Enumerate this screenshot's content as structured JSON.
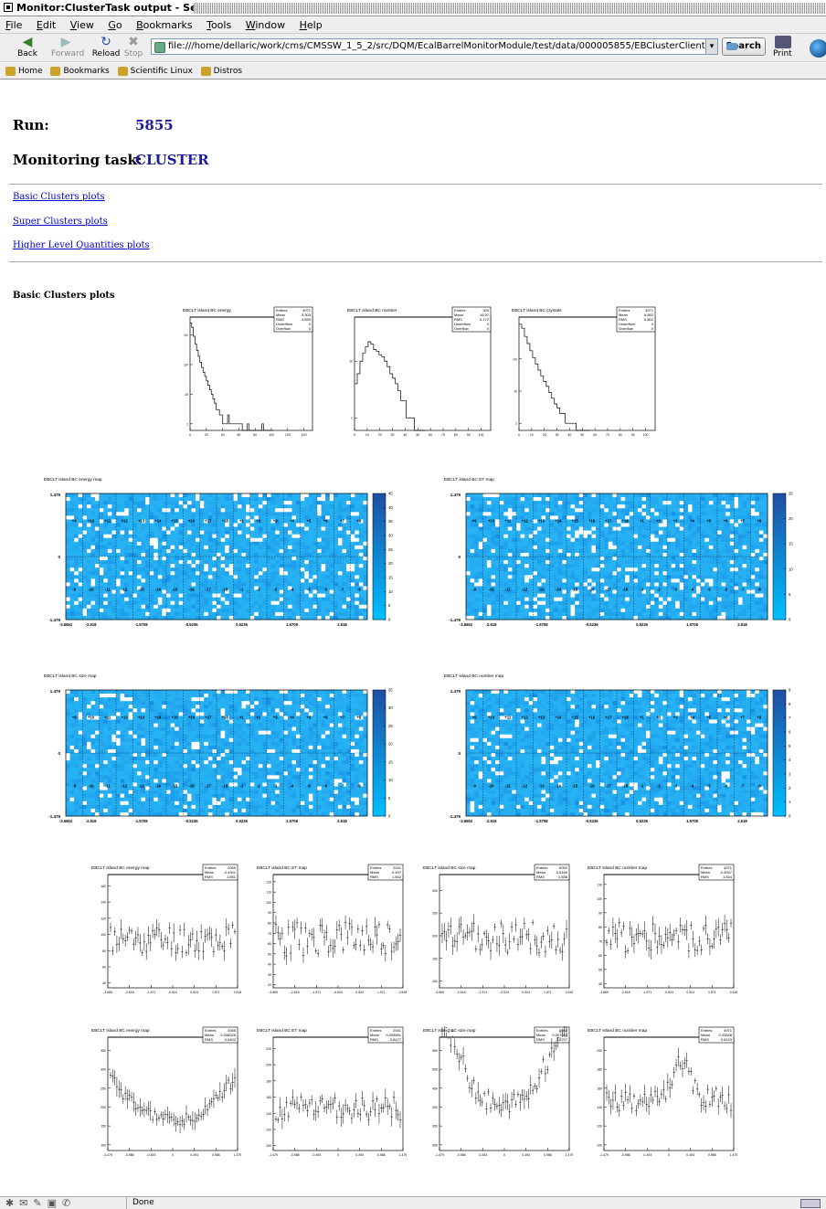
{
  "window": {
    "title": "Monitor:ClusterTask output - SeaMonkey"
  },
  "menu": [
    "File",
    "Edit",
    "View",
    "Go",
    "Bookmarks",
    "Tools",
    "Window",
    "Help"
  ],
  "nav": {
    "back": "Back",
    "forward": "Forward",
    "reload": "Reload",
    "stop": "Stop",
    "search": "Search",
    "print": "Print"
  },
  "address": {
    "url": "file:///home/dellaric/work/cms/CMSSW_1_5_2/src/DQM/EcalBarrelMonitorModule/test/data/000005855/EBClusterClient.html"
  },
  "bookmarks": [
    "Home",
    "Bookmarks",
    "Scientific Linux",
    "Distros"
  ],
  "page": {
    "run_label": "Run:",
    "run_value": "5855",
    "task_label": "Monitoring task:",
    "task_value": "CLUSTER",
    "links": [
      "Basic Clusters plots",
      "Super Clusters plots",
      "Higher Level Quantities plots"
    ],
    "section_title": "Basic Clusters plots"
  },
  "status": {
    "text": "Done"
  },
  "chart_data": [
    {
      "type": "line",
      "title": "EBCLT island BC energy",
      "stats": {
        "Entries": "4971",
        "Mean": "3.303",
        "RMS": "4.859",
        "Underflow": "0",
        "Overflow": "0"
      },
      "xticks": [
        "0",
        "20",
        "40",
        "60",
        "80",
        "100",
        "120",
        "140"
      ],
      "xlim": [
        0,
        150
      ],
      "logy": true,
      "ylim": [
        0.6,
        4000
      ],
      "yticks": [
        "1",
        "10",
        "10²",
        "10³"
      ],
      "x": [
        0,
        2,
        4,
        6,
        8,
        10,
        12,
        14,
        16,
        18,
        20,
        22,
        24,
        26,
        28,
        30,
        32,
        34,
        36,
        38,
        40,
        42,
        44,
        46,
        48,
        50,
        52,
        54,
        56,
        58,
        60,
        62,
        64,
        66,
        68,
        70,
        72,
        74,
        76,
        78,
        80,
        82,
        84,
        86,
        88,
        90,
        92,
        94,
        96,
        98,
        100
      ],
      "values": [
        2500,
        1800,
        900,
        500,
        300,
        190,
        120,
        80,
        55,
        40,
        28,
        20,
        14,
        10,
        7,
        5,
        3,
        3,
        2,
        2,
        1,
        1,
        1,
        2,
        1,
        1,
        1,
        1,
        1,
        1,
        1,
        1,
        0,
        0,
        0,
        1,
        0,
        0,
        0,
        0,
        0,
        0,
        0,
        0,
        1,
        0,
        0,
        0,
        0,
        0,
        0
      ]
    },
    {
      "type": "line",
      "title": "EBCLT island BC number",
      "stats": {
        "Entries": "300",
        "Mean": "16.57",
        "RMS": "9.172",
        "Underflow": "0",
        "Overflow": "0"
      },
      "xticks": [
        "0",
        "10",
        "20",
        "30",
        "40",
        "50",
        "60",
        "70",
        "80",
        "90",
        "100"
      ],
      "xlim": [
        0,
        100
      ],
      "logy": true,
      "ylim": [
        0.6,
        60
      ],
      "yticks": [
        "1",
        "10"
      ],
      "x": [
        0,
        2,
        4,
        6,
        8,
        10,
        12,
        14,
        16,
        18,
        20,
        22,
        24,
        26,
        28,
        30,
        32,
        34,
        36,
        38,
        40,
        42,
        44,
        46,
        48,
        50
      ],
      "values": [
        4,
        6,
        10,
        14,
        18,
        22,
        20,
        16,
        15,
        13,
        12,
        10,
        8,
        6,
        5,
        4,
        3,
        2,
        2,
        1,
        1,
        1,
        0,
        0,
        0,
        0
      ]
    },
    {
      "type": "line",
      "title": "EBCLT island BC crystals",
      "stats": {
        "Entries": "4971",
        "Mean": "6.852",
        "RMS": "5.802",
        "Underflow": "0",
        "Overflow": "0"
      },
      "xticks": [
        "0",
        "10",
        "20",
        "30",
        "40",
        "50",
        "60",
        "70",
        "80",
        "90",
        "100"
      ],
      "xlim": [
        0,
        100
      ],
      "logy": true,
      "ylim": [
        0.6,
        2000
      ],
      "yticks": [
        "1",
        "10",
        "10²"
      ],
      "x": [
        0,
        2,
        4,
        6,
        8,
        10,
        12,
        14,
        16,
        18,
        20,
        22,
        24,
        26,
        28,
        30,
        32,
        34,
        36,
        38,
        40,
        42,
        44,
        46,
        48,
        50
      ],
      "values": [
        1200,
        900,
        500,
        300,
        180,
        110,
        70,
        45,
        30,
        20,
        14,
        9,
        6,
        4,
        3,
        2,
        2,
        1,
        1,
        1,
        1,
        0,
        0,
        0,
        0,
        0
      ]
    },
    {
      "type": "heatmap",
      "title": "EBCLT island BC energy map",
      "ylabels": [
        "1.479",
        "0",
        "-1.479"
      ],
      "xlabels": [
        "-3.6652",
        "-2.618",
        "-1.5708",
        "-0.5236",
        "0.5236",
        "1.5708",
        "2.618"
      ],
      "zticks": [
        "0",
        "5",
        "10",
        "15",
        "20",
        "25",
        "30",
        "35",
        "40",
        "45"
      ],
      "zmax": 45,
      "sm_top": [
        "+9",
        "+10",
        "+11",
        "+12",
        "+13",
        "+14",
        "+15",
        "+16",
        "+17",
        "+18",
        "+1",
        "+2",
        "+3",
        "+4",
        "+5",
        "+6",
        "+7",
        "+8"
      ],
      "sm_bot": [
        "-9",
        "-10",
        "-11",
        "-12",
        "-13",
        "-14",
        "-15",
        "-16",
        "-17",
        "-18",
        "-1",
        "-2",
        "-3",
        "-4",
        "-5",
        "-6",
        "-7",
        "-8"
      ]
    },
    {
      "type": "heatmap",
      "title": "EBCLT island BC ET map",
      "ylabels": [
        "1.479",
        "0",
        "-1.479"
      ],
      "xlabels": [
        "-3.6652",
        "-2.618",
        "-1.5708",
        "-0.5236",
        "0.5236",
        "1.5708",
        "2.618"
      ],
      "zticks": [
        "0",
        "5",
        "10",
        "15",
        "20",
        "25"
      ],
      "zmax": 25,
      "sm_top": [
        "+9",
        "+10",
        "+11",
        "+12",
        "+13",
        "+14",
        "+15",
        "+16",
        "+17",
        "+18",
        "+1",
        "+2",
        "+3",
        "+4",
        "+5",
        "+6",
        "+7",
        "+8"
      ],
      "sm_bot": [
        "-9",
        "-10",
        "-11",
        "-12",
        "-13",
        "-14",
        "-15",
        "-16",
        "-17",
        "-18",
        "-1",
        "-2",
        "-3",
        "-4",
        "-5",
        "-6",
        "-7",
        "-8"
      ]
    },
    {
      "type": "heatmap",
      "title": "EBCLT island BC size map",
      "ylabels": [
        "1.479",
        "0",
        "-1.479"
      ],
      "xlabels": [
        "-3.6652",
        "-2.618",
        "-1.5708",
        "-0.5236",
        "0.5236",
        "1.5708",
        "2.618"
      ],
      "zticks": [
        "0",
        "5",
        "10",
        "15",
        "20",
        "25",
        "30",
        "35"
      ],
      "zmax": 35,
      "sm_top": [
        "+9",
        "+10",
        "+11",
        "+12",
        "+13",
        "+14",
        "+15",
        "+16",
        "+17",
        "+18",
        "+1",
        "+2",
        "+3",
        "+4",
        "+5",
        "+6",
        "+7",
        "+8"
      ],
      "sm_bot": [
        "-9",
        "-10",
        "-11",
        "-12",
        "-13",
        "-14",
        "-15",
        "-16",
        "-17",
        "-18",
        "-1",
        "-2",
        "-3",
        "-4",
        "-5",
        "-6",
        "-7",
        "-8"
      ]
    },
    {
      "type": "heatmap",
      "title": "EBCLT island BC number map",
      "ylabels": [
        "1.479",
        "0",
        "-1.479"
      ],
      "xlabels": [
        "-3.6652",
        "-2.618",
        "-1.5708",
        "-0.5236",
        "0.5236",
        "1.5708",
        "2.618"
      ],
      "zticks": [
        "0",
        "1",
        "2",
        "3",
        "4",
        "5",
        "6",
        "7",
        "8",
        "9"
      ],
      "zmax": 9,
      "sm_top": [
        "+9",
        "+10",
        "+11",
        "+12",
        "+13",
        "+14",
        "+15",
        "+16",
        "+17",
        "+18",
        "+1",
        "+2",
        "+3",
        "+4",
        "+5",
        "+6",
        "+7",
        "+8"
      ],
      "sm_bot": [
        "-9",
        "-10",
        "-11",
        "-12",
        "-13",
        "-14",
        "-15",
        "-16",
        "-17",
        "-18",
        "-1",
        "-2",
        "-3",
        "-4",
        "-5",
        "-6",
        "-7",
        "-8"
      ]
    },
    {
      "type": "scatter",
      "title": "EBCLT island BC energy map",
      "stats": {
        "Entries": "2065",
        "Mean": "-0.4941",
        "RMS": "1.851"
      },
      "xticks": [
        "-3.665",
        "-2.618",
        "-1.571",
        "-0.524",
        "0.524",
        "1.571",
        "2.618"
      ],
      "yticks": [
        "40",
        "60",
        "80",
        "100",
        "120",
        "140",
        "160"
      ],
      "ylim": [
        30,
        170
      ],
      "xlim": [
        -3.665,
        2.618
      ],
      "base": 90,
      "amp": 18,
      "seed": 11
    },
    {
      "type": "scatter",
      "title": "EBCLT island BC ET map",
      "stats": {
        "Entries": "2041",
        "Mean": "-0.497",
        "RMS": "1.842"
      },
      "xticks": [
        "-3.665",
        "-2.618",
        "-1.571",
        "-0.524",
        "0.524",
        "1.571",
        "2.618"
      ],
      "yticks": [
        "20",
        "30",
        "40",
        "50",
        "60",
        "70",
        "80",
        "90",
        "100",
        "110",
        "120"
      ],
      "ylim": [
        15,
        125
      ],
      "xlim": [
        -3.665,
        2.618
      ],
      "base": 62,
      "amp": 17,
      "seed": 23
    },
    {
      "type": "scatter",
      "title": "EBCLT island BC size map",
      "stats": {
        "Entries": "6052",
        "Mean": "-0.5165",
        "RMS": "1.836"
      },
      "xticks": [
        "-3.665",
        "-2.618",
        "-1.571",
        "-0.524",
        "0.524",
        "1.571",
        "2.618"
      ],
      "yticks": [
        "100",
        "150",
        "200",
        "250",
        "300"
      ],
      "ylim": [
        95,
        310
      ],
      "xlim": [
        -3.665,
        2.618
      ],
      "base": 190,
      "amp": 30,
      "seed": 37
    },
    {
      "type": "scatter",
      "title": "EBCLT island BC number map",
      "stats": {
        "Entries": "4971",
        "Mean": "-0.4937",
        "RMS": "1.834"
      },
      "xticks": [
        "-3.665",
        "-2.618",
        "-1.571",
        "-0.524",
        "0.524",
        "1.571",
        "2.618"
      ],
      "yticks": [
        "40",
        "50",
        "60",
        "70",
        "80",
        "90",
        "100",
        "110"
      ],
      "ylim": [
        35,
        118
      ],
      "xlim": [
        -3.665,
        2.618
      ],
      "base": 72,
      "amp": 12,
      "seed": 51
    },
    {
      "type": "scatter",
      "title": "EBCLT island BC energy map",
      "stats": {
        "Entries": "2065",
        "Mean": "0.008026",
        "RMS": "0.9402"
      },
      "xticks": [
        "-1.479",
        "-0.986",
        "-0.493",
        "0",
        "0.493",
        "0.986",
        "1.479"
      ],
      "yticks": [
        "100",
        "150",
        "200",
        "250",
        "300",
        "350"
      ],
      "ylim": [
        90,
        360
      ],
      "xlim": [
        -1.479,
        1.479
      ],
      "base": 160,
      "amp": 15,
      "seed": 61,
      "shape": "u"
    },
    {
      "type": "scatter",
      "title": "EBCLT island BC ET map",
      "stats": {
        "Entries": "2041",
        "Mean": "0.005651",
        "RMS": "0.8477"
      },
      "xticks": [
        "-1.479",
        "-0.986",
        "-0.493",
        "0",
        "0.493",
        "0.986",
        "1.479"
      ],
      "yticks": [
        "100",
        "120",
        "140",
        "160",
        "180",
        "200",
        "220"
      ],
      "ylim": [
        90,
        225
      ],
      "xlim": [
        -1.479,
        1.479
      ],
      "base": 140,
      "amp": 14,
      "seed": 71,
      "shape": "flat"
    },
    {
      "type": "scatter",
      "title": "EBCLT island BC size map",
      "stats": {
        "Entries": "6052",
        "Mean": "0.007043",
        "RMS": "0.8757"
      },
      "xticks": [
        "-1.479",
        "-0.986",
        "-0.493",
        "0",
        "0.493",
        "0.986",
        "1.479"
      ],
      "yticks": [
        "300",
        "350",
        "400",
        "450",
        "500",
        "550"
      ],
      "ylim": [
        270,
        560
      ],
      "xlim": [
        -1.479,
        1.479
      ],
      "base": 380,
      "amp": 28,
      "seed": 83,
      "shape": "u"
    },
    {
      "type": "scatter",
      "title": "EBCLT island BC number map",
      "stats": {
        "Entries": "4971",
        "Mean": "0.03548",
        "RMS": "0.8143"
      },
      "xticks": [
        "-1.479",
        "-0.986",
        "-0.493",
        "0",
        "0.493",
        "0.986",
        "1.479"
      ],
      "yticks": [
        "100",
        "120",
        "140",
        "160",
        "180",
        "200"
      ],
      "ylim": [
        92,
        210
      ],
      "xlim": [
        -1.479,
        1.479
      ],
      "base": 145,
      "amp": 12,
      "seed": 97,
      "shape": "bump"
    }
  ]
}
